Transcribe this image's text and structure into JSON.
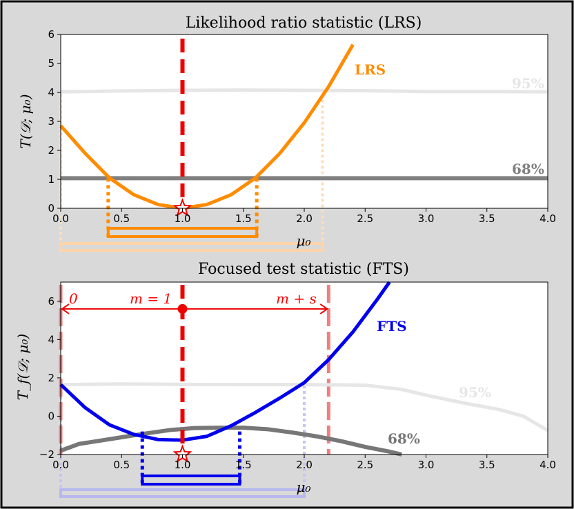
{
  "chart_data": [
    {
      "type": "line",
      "title": "Likelihood ratio statistic (LRS)",
      "xlabel": "μ₀",
      "ylabel": "T(𝒟; μ₀)",
      "xlim": [
        0.0,
        4.0
      ],
      "ylim": [
        0,
        6
      ],
      "xticks": [
        "0.0",
        "0.5",
        "1.0",
        "1.5",
        "2.0",
        "2.5",
        "3.0",
        "3.5",
        "4.0"
      ],
      "yticks": [
        "0",
        "1",
        "2",
        "3",
        "4",
        "5",
        "6"
      ],
      "grid": false,
      "legend": "none",
      "series": [
        {
          "name": "LRS",
          "color": "#ff8c00",
          "x": [
            0.0,
            0.2,
            0.4,
            0.6,
            0.8,
            1.0,
            1.2,
            1.4,
            1.6,
            1.8,
            2.0,
            2.2,
            2.4
          ],
          "values": [
            2.85,
            1.9,
            1.05,
            0.47,
            0.13,
            0.0,
            0.13,
            0.47,
            1.05,
            1.9,
            2.95,
            4.2,
            5.65
          ]
        },
        {
          "name": "95%",
          "color": "#e6e6e6",
          "x": [
            0.0,
            0.5,
            1.0,
            1.5,
            2.0,
            2.5,
            3.0,
            3.5,
            4.0
          ],
          "values": [
            4.02,
            4.05,
            4.07,
            4.08,
            4.07,
            4.06,
            4.03,
            4.03,
            4.02
          ]
        },
        {
          "name": "68%",
          "color": "#808080",
          "x": [
            0.0,
            1.0,
            2.0,
            3.0,
            4.0
          ],
          "values": [
            1.04,
            1.04,
            1.04,
            1.04,
            1.04
          ]
        }
      ],
      "best_fit_marker": {
        "x": 1.0,
        "y": 0.0
      },
      "true_value_line": {
        "x": 1.0
      },
      "interval_68": [
        0.39,
        1.61
      ],
      "interval_95": [
        0.0,
        2.15
      ]
    },
    {
      "type": "line",
      "title": "Focused test statistic (FTS)",
      "xlabel": "μ₀",
      "ylabel": "T_f(𝒟; μ₀)",
      "xlim": [
        0.0,
        4.0
      ],
      "ylim": [
        -2,
        7
      ],
      "xticks": [
        "0.0",
        "0.5",
        "1.0",
        "1.5",
        "2.0",
        "2.5",
        "3.0",
        "3.5",
        "4.0"
      ],
      "yticks": [
        "−2",
        "0",
        "2",
        "4",
        "6"
      ],
      "grid": false,
      "legend": "none",
      "series": [
        {
          "name": "FTS",
          "color": "#0000ee",
          "x": [
            0.0,
            0.2,
            0.4,
            0.6,
            0.8,
            1.0,
            1.2,
            1.4,
            1.6,
            1.8,
            2.0,
            2.2,
            2.4,
            2.6,
            2.7
          ],
          "values": [
            1.65,
            0.45,
            -0.45,
            -0.95,
            -1.22,
            -1.25,
            -1.05,
            -0.5,
            0.2,
            0.95,
            1.75,
            2.95,
            4.4,
            6.1,
            7.0
          ]
        },
        {
          "name": "95%",
          "color": "#e6e6e6",
          "x": [
            0.0,
            0.5,
            1.0,
            1.5,
            2.0,
            2.5,
            2.8,
            3.0,
            3.3,
            3.6,
            3.8,
            4.0
          ],
          "values": [
            1.65,
            1.68,
            1.66,
            1.65,
            1.65,
            1.62,
            1.4,
            1.1,
            0.7,
            0.35,
            0.0,
            -0.75
          ]
        },
        {
          "name": "68%",
          "color": "#777777",
          "x": [
            0.0,
            0.15,
            0.3,
            0.5,
            0.7,
            0.9,
            1.1,
            1.3,
            1.5,
            1.7,
            1.9,
            2.1,
            2.3,
            2.5,
            2.7,
            2.8
          ],
          "values": [
            -1.8,
            -1.45,
            -1.3,
            -1.1,
            -0.9,
            -0.72,
            -0.62,
            -0.6,
            -0.6,
            -0.68,
            -0.85,
            -1.05,
            -1.3,
            -1.6,
            -1.85,
            -2.0
          ]
        }
      ],
      "best_fit_marker": {
        "x": 1.0,
        "y": -2.0
      },
      "true_value_line": {
        "x": 1.0
      },
      "bound_lines": [
        0.0,
        2.2
      ],
      "bound_point": {
        "x": 1.0,
        "y": 5.6
      },
      "annotations": [
        {
          "text": "0",
          "x": 0.05,
          "y": 6.3
        },
        {
          "text": "m = 1",
          "x": 0.65,
          "y": 6.3
        },
        {
          "text": "m + s",
          "x": 1.75,
          "y": 6.3
        }
      ],
      "interval_68": [
        0.67,
        1.47
      ],
      "interval_95": [
        0.0,
        2.0
      ]
    }
  ]
}
